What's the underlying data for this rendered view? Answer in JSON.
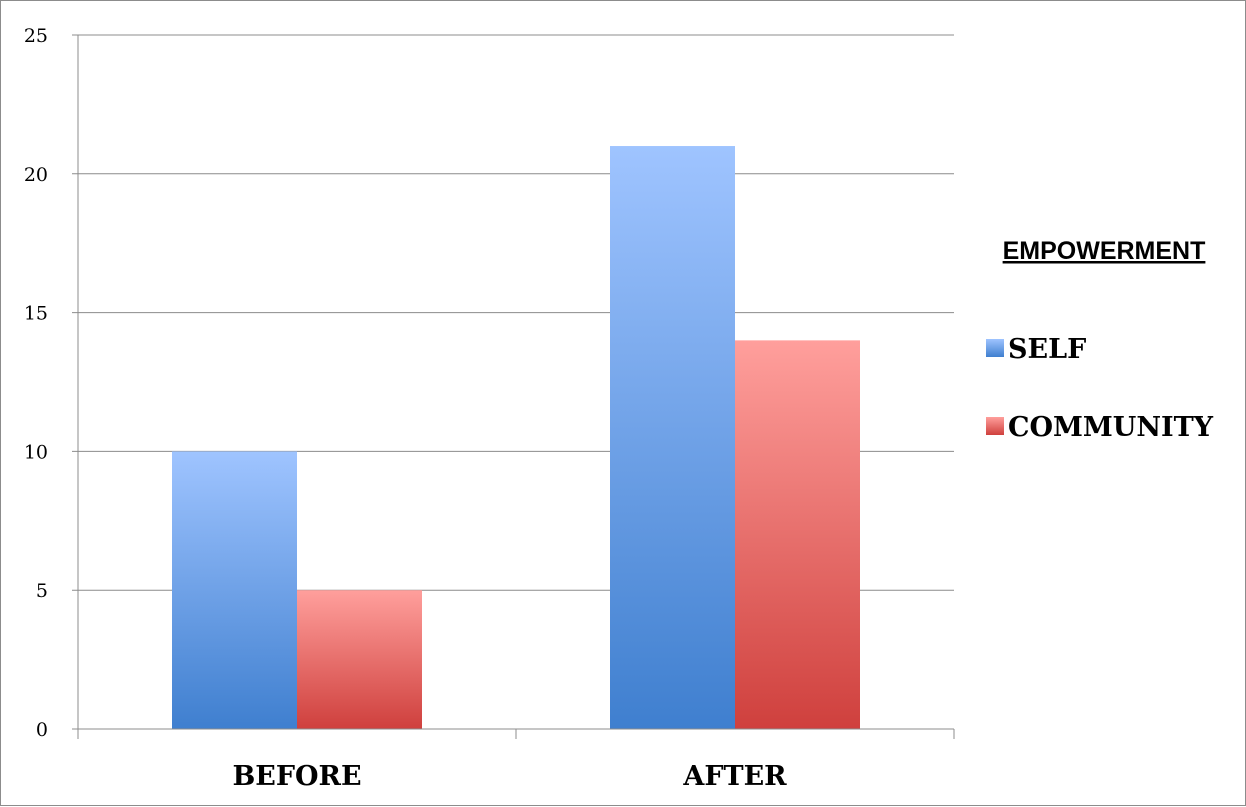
{
  "chart_data": {
    "type": "bar",
    "title": "",
    "xlabel": "",
    "ylabel": "",
    "categories": [
      "BEFORE",
      "AFTER"
    ],
    "series": [
      {
        "name": "SELF",
        "values": [
          10,
          21
        ],
        "color_top": "#9fc4ff",
        "color_bottom": "#3f7fcf"
      },
      {
        "name": "COMMUNITY",
        "values": [
          5,
          14
        ],
        "color_top": "#ff9f9c",
        "color_bottom": "#cf403d"
      }
    ],
    "ylim": [
      0,
      25
    ],
    "yticks": [
      "0",
      "5",
      "10",
      "15",
      "20",
      "25"
    ],
    "grid": true,
    "legend": {
      "title": "EMPOWERMENT",
      "placement": "right"
    }
  }
}
